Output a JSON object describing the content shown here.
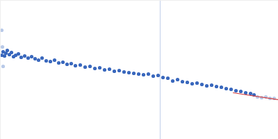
{
  "chart_data": {
    "type": "scatter",
    "xlim": [
      0,
      400
    ],
    "ylim": [
      0,
      200
    ],
    "tick_labels": false,
    "grid": false,
    "series": [
      {
        "type": "line",
        "color": "#c8d4ec",
        "x": [
          230,
          230
        ],
        "values": [
          0,
          200
        ]
      },
      {
        "type": "scatter",
        "color": "#b8c9e8",
        "marker": "circle",
        "x": [
          2,
          3,
          4,
          370,
          376,
          382,
          388,
          394
        ],
        "values": [
          157,
          133,
          105,
          61,
          60,
          61,
          59,
          59
        ]
      },
      {
        "type": "scatter",
        "color": "#3a68bd",
        "marker": "circle",
        "x": [
          2,
          4,
          6,
          8,
          10,
          13,
          16,
          19,
          22,
          26,
          30,
          35,
          40,
          45,
          50,
          55,
          60,
          66,
          72,
          78,
          84,
          90,
          96,
          102,
          108,
          115,
          122,
          129,
          136,
          143,
          150,
          157,
          164,
          171,
          178,
          185,
          192,
          199,
          206,
          213,
          220,
          227,
          234,
          241,
          248,
          255,
          262,
          269,
          276,
          283,
          290,
          297,
          304,
          311,
          318,
          325,
          332,
          339,
          346,
          353,
          360,
          365
        ],
        "values": [
          121,
          126,
          120,
          124,
          128,
          122,
          125,
          119,
          121,
          123,
          118,
          120,
          117,
          119,
          116,
          114,
          117,
          113,
          112,
          114,
          110,
          111,
          108,
          109,
          106,
          107,
          104,
          105,
          102,
          103,
          100,
          101,
          98,
          99,
          97,
          96,
          95,
          94,
          93,
          94,
          91,
          92,
          89,
          88,
          84,
          86,
          83,
          82,
          80,
          81,
          79,
          77,
          78,
          76,
          75,
          73,
          72,
          70,
          69,
          67,
          66,
          64
        ]
      },
      {
        "type": "line",
        "color": "#d43c3c",
        "x": [
          335,
          400
        ],
        "values": [
          67,
          57
        ]
      }
    ]
  }
}
